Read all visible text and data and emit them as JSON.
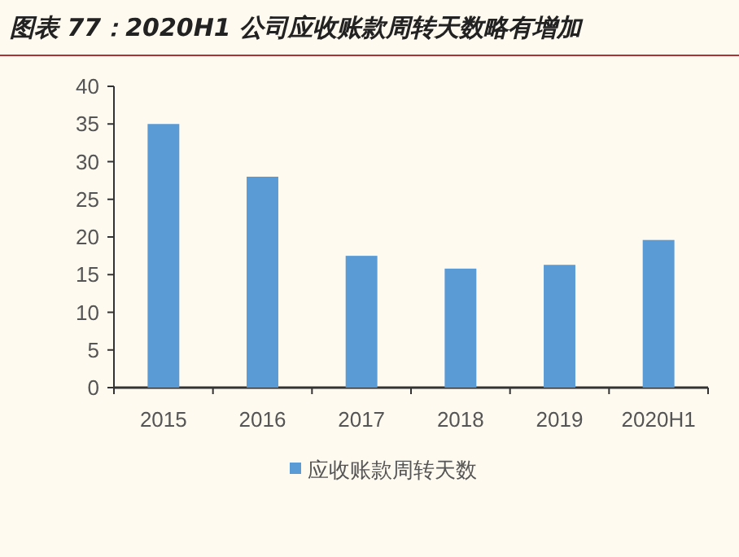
{
  "chart_data": {
    "type": "bar",
    "title": "图表 77：2020H1 公司应收账款周转天数略有增加",
    "categories": [
      "2015",
      "2016",
      "2017",
      "2018",
      "2019",
      "2020H1"
    ],
    "series": [
      {
        "name": "应收账款周转天数",
        "color": "#5b9bd5",
        "values": [
          35,
          28,
          17.5,
          15.8,
          16.3,
          19.6
        ]
      }
    ],
    "ylim": [
      0,
      40
    ],
    "yticks": [
      0,
      5,
      10,
      15,
      20,
      25,
      30,
      35,
      40
    ],
    "grid": false,
    "legend": "bottom"
  }
}
